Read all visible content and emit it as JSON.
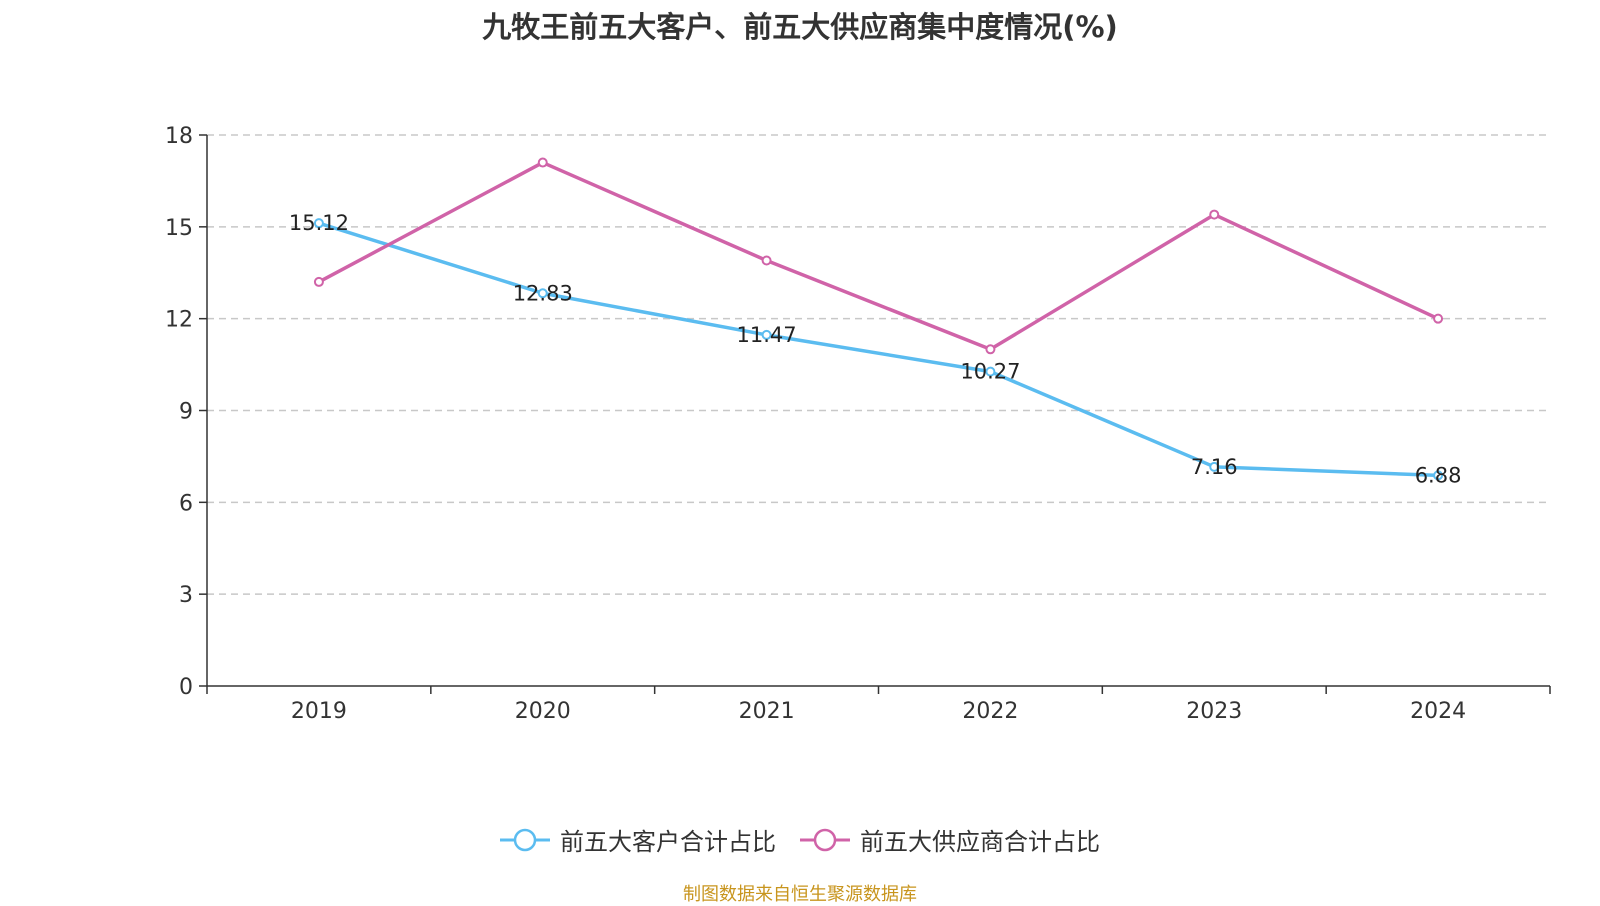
{
  "title": "九牧王前五大客户、前五大供应商集中度情况(%)",
  "source": "制图数据来自恒生聚源数据库",
  "chart_data": {
    "type": "line",
    "title": "九牧王前五大客户、前五大供应商集中度情况(%)",
    "categories": [
      "2019",
      "2020",
      "2021",
      "2022",
      "2023",
      "2024"
    ],
    "ylim": [
      0,
      18
    ],
    "yticks": [
      0,
      3,
      6,
      9,
      12,
      15,
      18
    ],
    "grid": true,
    "legend_position": "bottom",
    "series": [
      {
        "name": "前五大客户合计占比",
        "color": "#5bbcf0",
        "values": [
          15.12,
          12.83,
          11.47,
          10.27,
          7.16,
          6.88
        ],
        "labels": [
          "15.12",
          "12.83",
          "11.47",
          "10.27",
          "7.16",
          "6.88"
        ]
      },
      {
        "name": "前五大供应商合计占比",
        "color": "#d063a8",
        "values": [
          13.2,
          17.1,
          13.9,
          11.0,
          15.4,
          12.0
        ]
      }
    ]
  }
}
